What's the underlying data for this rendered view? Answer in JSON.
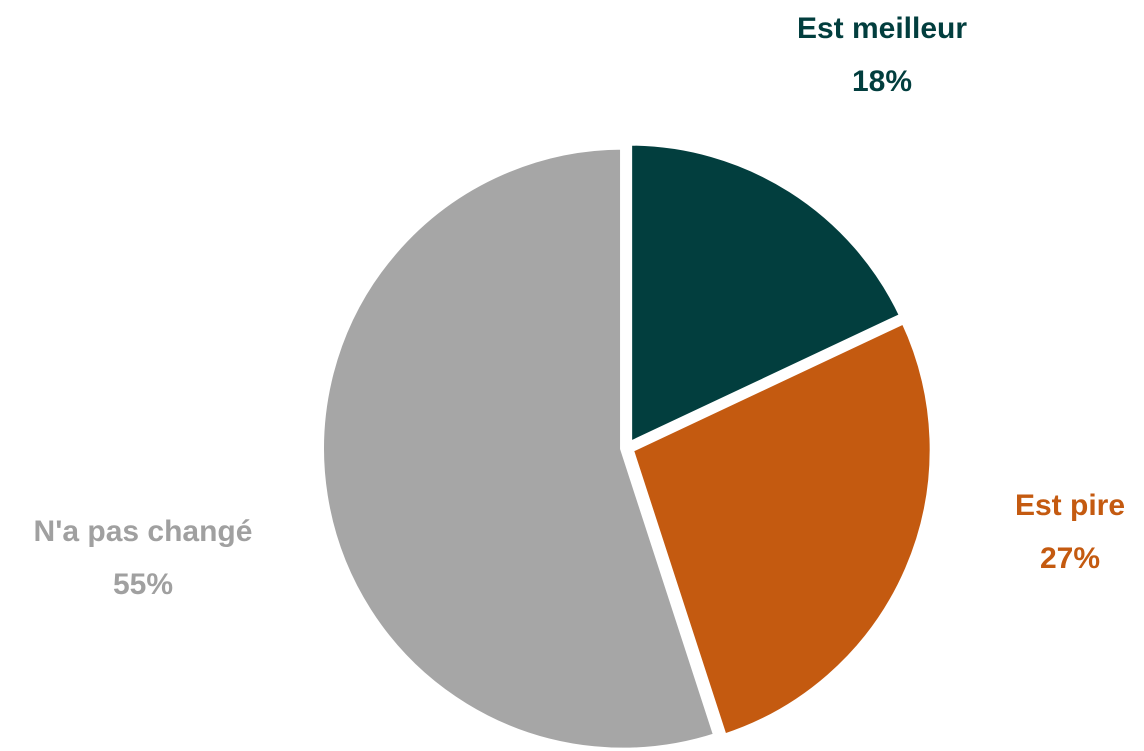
{
  "chart_data": {
    "type": "pie",
    "categories": [
      "Est meilleur",
      "Est pire",
      "N'a pas changé"
    ],
    "values": [
      18,
      27,
      55
    ],
    "value_labels": [
      "18%",
      "27%",
      "55%"
    ],
    "colors": [
      "#023e3e",
      "#c45a10",
      "#a6a6a6"
    ]
  }
}
